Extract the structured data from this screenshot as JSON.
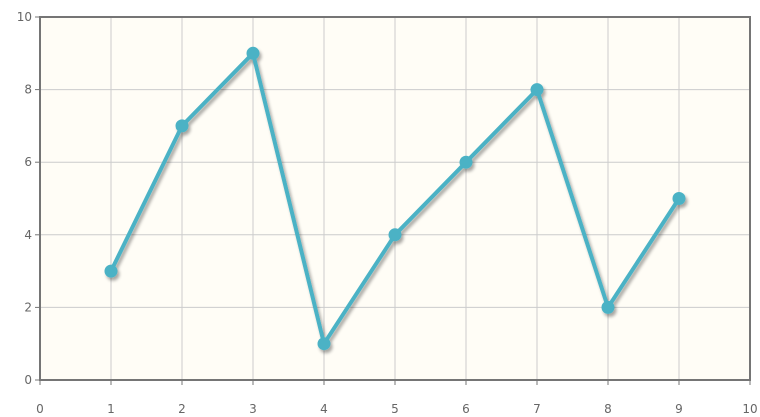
{
  "chart_data": {
    "type": "line",
    "title": "",
    "xlabel": "",
    "ylabel": "",
    "xlim": [
      0,
      10
    ],
    "ylim": [
      0,
      10
    ],
    "x_ticks": [
      0,
      1,
      2,
      3,
      4,
      5,
      6,
      7,
      8,
      9,
      10
    ],
    "y_ticks": [
      0,
      2,
      4,
      6,
      8,
      10
    ],
    "grid": true,
    "legend": "none",
    "series": [
      {
        "x": [
          1,
          2,
          3,
          4,
          5,
          6,
          7,
          8,
          9
        ],
        "values": [
          3,
          7,
          9,
          1,
          4,
          6,
          8,
          2,
          5
        ],
        "color": "#4bb2c5",
        "markers": true
      }
    ],
    "colors": {
      "plot_background": "#fffdf6",
      "grid": "#cccccc",
      "axis": "#757575",
      "tick_label": "#666666"
    }
  }
}
